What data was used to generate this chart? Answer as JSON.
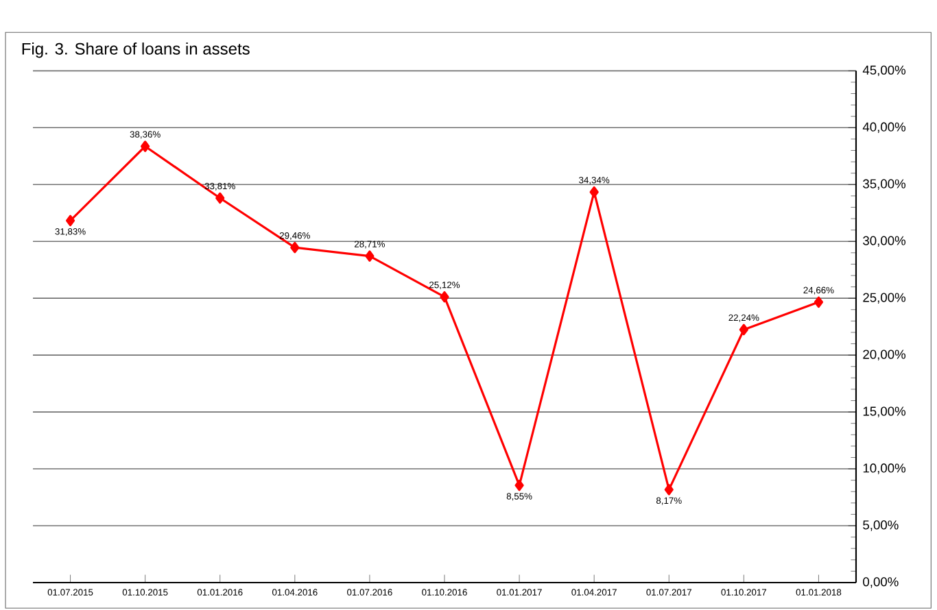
{
  "chart_data": {
    "type": "line",
    "title": "Fig. 3. Share of loans in assets",
    "categories": [
      "01.07.2015",
      "01.10.2015",
      "01.01.2016",
      "01.04.2016",
      "01.07.2016",
      "01.10.2016",
      "01.01.2017",
      "01.04.2017",
      "01.07.2017",
      "01.10.2017",
      "01.01.2018"
    ],
    "series": [
      {
        "color": "#ff0000",
        "values": [
          31.83,
          38.36,
          33.81,
          29.46,
          28.71,
          25.12,
          8.55,
          34.34,
          8.17,
          22.24,
          24.66
        ],
        "value_labels": [
          "31,83%",
          "38,36%",
          "33,81%",
          "29,46%",
          "28,71%",
          "25,12%",
          "8,55%",
          "34,34%",
          "8,17%",
          "22,24%",
          "24,66%"
        ]
      }
    ],
    "ylim": [
      0,
      45
    ],
    "yticks": [
      {
        "value": 0,
        "label": "0,00%"
      },
      {
        "value": 5,
        "label": "5,00%"
      },
      {
        "value": 10,
        "label": "10,00%"
      },
      {
        "value": 15,
        "label": "15,00%"
      },
      {
        "value": 20,
        "label": "20,00%"
      },
      {
        "value": 25,
        "label": "25,00%"
      },
      {
        "value": 30,
        "label": "30,00%"
      },
      {
        "value": 35,
        "label": "35,00%"
      },
      {
        "value": 40,
        "label": "40,00%"
      },
      {
        "value": 45,
        "label": "45,00%"
      }
    ],
    "grid": "y",
    "marker": "diamond",
    "line_style": "solid"
  }
}
